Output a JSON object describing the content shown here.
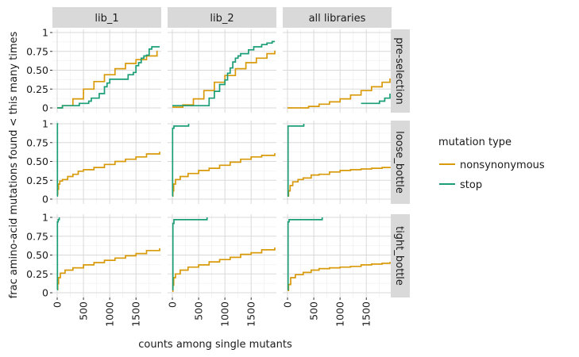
{
  "chart_data": {
    "type": "line",
    "step": true,
    "facet_columns": [
      "lib_1",
      "lib_2",
      "all libraries"
    ],
    "facet_rows": [
      "pre-selection",
      "loose_bottle",
      "tight_bottle"
    ],
    "xlabel": "counts among single mutants",
    "ylabel": "frac amino-acid mutations found < this many times",
    "xlim": [
      0,
      1950
    ],
    "ylim": [
      0,
      1
    ],
    "x_ticks": [
      0,
      500,
      1000,
      1500
    ],
    "y_ticks": [
      0,
      0.25,
      0.5,
      0.75,
      1
    ],
    "y_tick_labels": [
      "0",
      "0.25",
      "0.50",
      "0.75",
      "1"
    ],
    "grid": true,
    "legend": {
      "title": "mutation type",
      "position": "right",
      "entries": [
        {
          "label": "nonsynonymous",
          "color": "#d99a0a"
        },
        {
          "label": "stop",
          "color": "#1b9e77"
        }
      ]
    },
    "panels": [
      {
        "col": "lib_1",
        "row": "pre-selection",
        "series": [
          {
            "name": "nonsynonymous",
            "points": [
              [
                0,
                0
              ],
              [
                100,
                0.03
              ],
              [
                300,
                0.12
              ],
              [
                500,
                0.25
              ],
              [
                700,
                0.35
              ],
              [
                900,
                0.44
              ],
              [
                1100,
                0.52
              ],
              [
                1300,
                0.59
              ],
              [
                1500,
                0.64
              ],
              [
                1700,
                0.69
              ],
              [
                1900,
                0.76
              ]
            ]
          },
          {
            "name": "stop",
            "points": [
              [
                0,
                0
              ],
              [
                100,
                0.03
              ],
              [
                400,
                0.03
              ],
              [
                420,
                0.06
              ],
              [
                600,
                0.09
              ],
              [
                650,
                0.13
              ],
              [
                800,
                0.19
              ],
              [
                900,
                0.28
              ],
              [
                950,
                0.33
              ],
              [
                1000,
                0.38
              ],
              [
                1100,
                0.38
              ],
              [
                1200,
                0.38
              ],
              [
                1300,
                0.38
              ],
              [
                1350,
                0.44
              ],
              [
                1450,
                0.47
              ],
              [
                1500,
                0.56
              ],
              [
                1550,
                0.6
              ],
              [
                1600,
                0.66
              ],
              [
                1650,
                0.69
              ],
              [
                1700,
                0.7
              ],
              [
                1750,
                0.78
              ],
              [
                1800,
                0.81
              ],
              [
                1950,
                0.81
              ]
            ]
          }
        ]
      },
      {
        "col": "lib_2",
        "row": "pre-selection",
        "series": [
          {
            "name": "nonsynonymous",
            "points": [
              [
                0,
                0.01
              ],
              [
                200,
                0.04
              ],
              [
                400,
                0.12
              ],
              [
                600,
                0.23
              ],
              [
                800,
                0.34
              ],
              [
                1000,
                0.43
              ],
              [
                1200,
                0.52
              ],
              [
                1400,
                0.6
              ],
              [
                1600,
                0.66
              ],
              [
                1800,
                0.72
              ],
              [
                1950,
                0.76
              ]
            ]
          },
          {
            "name": "stop",
            "points": [
              [
                0,
                0.03
              ],
              [
                650,
                0.03
              ],
              [
                700,
                0.13
              ],
              [
                800,
                0.22
              ],
              [
                900,
                0.31
              ],
              [
                1000,
                0.37
              ],
              [
                1050,
                0.46
              ],
              [
                1100,
                0.53
              ],
              [
                1150,
                0.61
              ],
              [
                1200,
                0.66
              ],
              [
                1250,
                0.69
              ],
              [
                1300,
                0.72
              ],
              [
                1450,
                0.77
              ],
              [
                1550,
                0.81
              ],
              [
                1700,
                0.84
              ],
              [
                1800,
                0.86
              ],
              [
                1900,
                0.88
              ],
              [
                1950,
                0.88
              ]
            ]
          }
        ]
      },
      {
        "col": "all libraries",
        "row": "pre-selection",
        "series": [
          {
            "name": "nonsynonymous",
            "points": [
              [
                0,
                0
              ],
              [
                200,
                0
              ],
              [
                400,
                0.02
              ],
              [
                600,
                0.05
              ],
              [
                800,
                0.08
              ],
              [
                1000,
                0.12
              ],
              [
                1200,
                0.17
              ],
              [
                1400,
                0.23
              ],
              [
                1600,
                0.28
              ],
              [
                1800,
                0.34
              ],
              [
                1950,
                0.39
              ]
            ]
          },
          {
            "name": "stop",
            "points": [
              [
                1400,
                0.06
              ],
              [
                1700,
                0.06
              ],
              [
                1750,
                0.09
              ],
              [
                1850,
                0.13
              ],
              [
                1950,
                0.19
              ]
            ]
          }
        ]
      },
      {
        "col": "lib_1",
        "row": "loose_bottle",
        "series": [
          {
            "name": "nonsynonymous",
            "points": [
              [
                0,
                0.06
              ],
              [
                10,
                0.13
              ],
              [
                25,
                0.2
              ],
              [
                50,
                0.24
              ],
              [
                100,
                0.26
              ],
              [
                200,
                0.3
              ],
              [
                300,
                0.33
              ],
              [
                400,
                0.37
              ],
              [
                500,
                0.39
              ],
              [
                700,
                0.42
              ],
              [
                900,
                0.46
              ],
              [
                1100,
                0.5
              ],
              [
                1300,
                0.53
              ],
              [
                1500,
                0.56
              ],
              [
                1700,
                0.6
              ],
              [
                1950,
                0.63
              ]
            ]
          },
          {
            "name": "stop",
            "points": [
              [
                0,
                0.04
              ],
              [
                5,
                1
              ],
              [
                20,
                1
              ]
            ]
          }
        ]
      },
      {
        "col": "lib_2",
        "row": "loose_bottle",
        "series": [
          {
            "name": "nonsynonymous",
            "points": [
              [
                0,
                0.04
              ],
              [
                10,
                0.11
              ],
              [
                25,
                0.2
              ],
              [
                60,
                0.26
              ],
              [
                150,
                0.3
              ],
              [
                300,
                0.34
              ],
              [
                500,
                0.38
              ],
              [
                700,
                0.41
              ],
              [
                900,
                0.45
              ],
              [
                1100,
                0.49
              ],
              [
                1300,
                0.53
              ],
              [
                1500,
                0.56
              ],
              [
                1700,
                0.58
              ],
              [
                1950,
                0.61
              ]
            ]
          },
          {
            "name": "stop",
            "points": [
              [
                0,
                0.04
              ],
              [
                5,
                0.94
              ],
              [
                30,
                0.97
              ],
              [
                300,
                0.97
              ],
              [
                310,
                1
              ]
            ]
          }
        ]
      },
      {
        "col": "all libraries",
        "row": "loose_bottle",
        "series": [
          {
            "name": "nonsynonymous",
            "points": [
              [
                0,
                0.04
              ],
              [
                20,
                0.11
              ],
              [
                50,
                0.18
              ],
              [
                100,
                0.23
              ],
              [
                200,
                0.26
              ],
              [
                300,
                0.28
              ],
              [
                450,
                0.32
              ],
              [
                600,
                0.33
              ],
              [
                800,
                0.36
              ],
              [
                1000,
                0.38
              ],
              [
                1200,
                0.39
              ],
              [
                1400,
                0.4
              ],
              [
                1600,
                0.41
              ],
              [
                1800,
                0.42
              ],
              [
                1950,
                0.43
              ]
            ]
          },
          {
            "name": "stop",
            "points": [
              [
                0,
                0.04
              ],
              [
                10,
                0.97
              ],
              [
                300,
                0.97
              ],
              [
                310,
                1
              ]
            ]
          }
        ]
      },
      {
        "col": "lib_1",
        "row": "tight_bottle",
        "series": [
          {
            "name": "nonsynonymous",
            "points": [
              [
                0,
                0.04
              ],
              [
                10,
                0.12
              ],
              [
                25,
                0.2
              ],
              [
                60,
                0.26
              ],
              [
                150,
                0.3
              ],
              [
                300,
                0.33
              ],
              [
                500,
                0.37
              ],
              [
                700,
                0.4
              ],
              [
                900,
                0.43
              ],
              [
                1100,
                0.46
              ],
              [
                1300,
                0.49
              ],
              [
                1500,
                0.52
              ],
              [
                1700,
                0.56
              ],
              [
                1950,
                0.59
              ]
            ]
          },
          {
            "name": "stop",
            "points": [
              [
                0,
                0.04
              ],
              [
                5,
                0.94
              ],
              [
                20,
                0.97
              ],
              [
                40,
                1
              ]
            ]
          }
        ]
      },
      {
        "col": "lib_2",
        "row": "tight_bottle",
        "series": [
          {
            "name": "nonsynonymous",
            "points": [
              [
                0,
                0.02
              ],
              [
                10,
                0.1
              ],
              [
                25,
                0.2
              ],
              [
                60,
                0.25
              ],
              [
                150,
                0.3
              ],
              [
                300,
                0.34
              ],
              [
                500,
                0.37
              ],
              [
                700,
                0.41
              ],
              [
                900,
                0.44
              ],
              [
                1100,
                0.47
              ],
              [
                1300,
                0.51
              ],
              [
                1500,
                0.53
              ],
              [
                1700,
                0.57
              ],
              [
                1950,
                0.6
              ]
            ]
          },
          {
            "name": "stop",
            "points": [
              [
                0,
                0.04
              ],
              [
                10,
                0.92
              ],
              [
                30,
                0.97
              ],
              [
                650,
                0.97
              ],
              [
                660,
                1
              ]
            ]
          }
        ]
      },
      {
        "col": "all libraries",
        "row": "tight_bottle",
        "series": [
          {
            "name": "nonsynonymous",
            "points": [
              [
                0,
                0.03
              ],
              [
                20,
                0.11
              ],
              [
                60,
                0.2
              ],
              [
                150,
                0.24
              ],
              [
                300,
                0.27
              ],
              [
                450,
                0.3
              ],
              [
                600,
                0.32
              ],
              [
                800,
                0.33
              ],
              [
                1000,
                0.34
              ],
              [
                1200,
                0.35
              ],
              [
                1400,
                0.37
              ],
              [
                1600,
                0.38
              ],
              [
                1800,
                0.39
              ],
              [
                1950,
                0.41
              ]
            ]
          },
          {
            "name": "stop",
            "points": [
              [
                0,
                0.04
              ],
              [
                10,
                0.94
              ],
              [
                30,
                0.97
              ],
              [
                650,
                0.97
              ],
              [
                660,
                1
              ]
            ]
          }
        ]
      }
    ]
  }
}
